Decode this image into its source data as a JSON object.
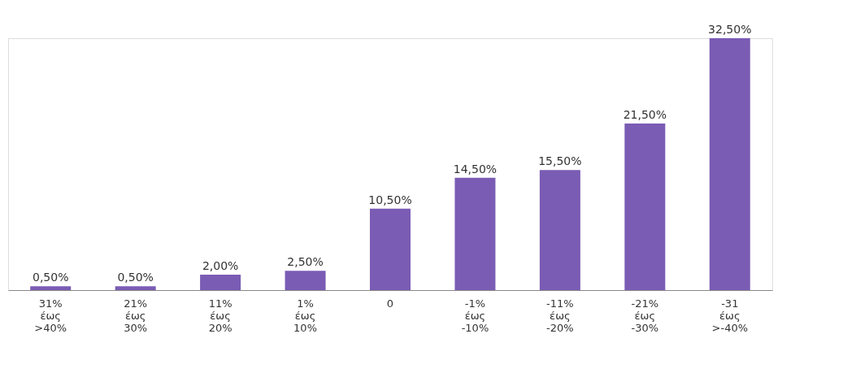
{
  "chart_data": {
    "type": "bar",
    "categories": [
      "31% έως >40%",
      "21% έως 30%",
      "11% έως 20%",
      "1% έως 10%",
      "0",
      "-1% έως -10%",
      "-11% έως -20%",
      "-21% έως -30%",
      "-31 έως >-40%"
    ],
    "values": [
      0.5,
      0.5,
      2.0,
      2.5,
      10.5,
      14.5,
      15.5,
      21.5,
      32.5
    ],
    "value_labels": [
      "0,50%",
      "0,50%",
      "2,00%",
      "2,50%",
      "10,50%",
      "14,50%",
      "15,50%",
      "21,50%",
      "32,50%"
    ],
    "color": "#7a5cb4",
    "grid": false
  }
}
